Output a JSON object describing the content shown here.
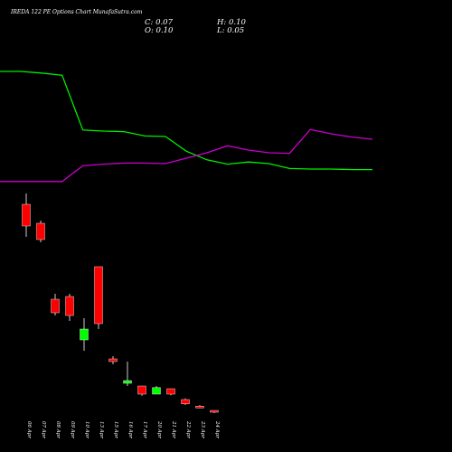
{
  "header": {
    "title": "IREDA 122 PE Options Chart MunafaSutra.com",
    "close": "C: 0.07",
    "open": "O: 0.10",
    "high": "H: 0.10",
    "low": "L: 0.05"
  },
  "chart_data": {
    "type": "candlestick",
    "title": "IREDA 122 PE Options Chart MunafaSutra.com",
    "xlabel": "",
    "ylabel": "",
    "ylim": [
      0,
      7
    ],
    "grid": false,
    "categories": [
      "06 Apr",
      "07 Apr",
      "08 Apr",
      "09 Apr",
      "10 Apr",
      "13 Apr",
      "15 Apr",
      "16 Apr",
      "17 Apr",
      "20 Apr",
      "21 Apr",
      "22 Apr",
      "23 Apr",
      "24 Apr"
    ],
    "colors": {
      "up": "#00ff00",
      "down": "#ff0000",
      "background": "#000000",
      "line_a": "#00ee00",
      "line_b": "#cc00cc"
    },
    "candles": [
      {
        "date": "06 Apr",
        "open": 3.9,
        "high": 4.1,
        "low": 3.3,
        "close": 3.5
      },
      {
        "date": "07 Apr",
        "open": 3.55,
        "high": 3.6,
        "low": 3.2,
        "close": 3.25
      },
      {
        "date": "08 Apr",
        "open": 2.15,
        "high": 2.25,
        "low": 1.85,
        "close": 1.9
      },
      {
        "date": "09 Apr",
        "open": 2.2,
        "high": 2.25,
        "low": 1.75,
        "close": 1.85
      },
      {
        "date": "10 Apr",
        "open": 1.4,
        "high": 1.8,
        "low": 1.2,
        "close": 1.6
      },
      {
        "date": "13 Apr",
        "open": 2.75,
        "high": 2.75,
        "low": 1.6,
        "close": 1.7
      },
      {
        "date": "15 Apr",
        "open": 1.05,
        "high": 1.1,
        "low": 0.95,
        "close": 1.0
      },
      {
        "date": "16 Apr",
        "open": 0.6,
        "high": 1.0,
        "low": 0.55,
        "close": 0.65
      },
      {
        "date": "17 Apr",
        "open": 0.55,
        "high": 0.55,
        "low": 0.37,
        "close": 0.4
      },
      {
        "date": "20 Apr",
        "open": 0.4,
        "high": 0.55,
        "low": 0.4,
        "close": 0.52
      },
      {
        "date": "21 Apr",
        "open": 0.5,
        "high": 0.5,
        "low": 0.38,
        "close": 0.4
      },
      {
        "date": "22 Apr",
        "open": 0.3,
        "high": 0.32,
        "low": 0.2,
        "close": 0.22
      },
      {
        "date": "23 Apr",
        "open": 0.18,
        "high": 0.2,
        "low": 0.15,
        "close": 0.16
      },
      {
        "date": "24 Apr",
        "open": 0.1,
        "high": 0.1,
        "low": 0.05,
        "close": 0.07
      }
    ],
    "series": [
      {
        "color": "#00ee00",
        "points": [
          [
            0,
            6.35
          ],
          [
            1,
            6.35
          ],
          [
            2,
            6.32
          ],
          [
            3,
            6.28
          ],
          [
            4,
            5.27
          ],
          [
            5,
            5.25
          ],
          [
            6,
            5.24
          ],
          [
            7,
            5.16
          ],
          [
            8,
            5.15
          ],
          [
            9,
            4.88
          ],
          [
            10,
            4.72
          ],
          [
            11,
            4.64
          ],
          [
            12,
            4.68
          ],
          [
            13,
            4.65
          ],
          [
            14,
            4.56
          ],
          [
            15,
            4.55
          ],
          [
            16,
            4.55
          ],
          [
            17,
            4.54
          ],
          [
            18,
            4.54
          ]
        ]
      },
      {
        "color": "#cc00cc",
        "points": [
          [
            0,
            4.32
          ],
          [
            1,
            4.32
          ],
          [
            2,
            4.32
          ],
          [
            3,
            4.32
          ],
          [
            4,
            4.61
          ],
          [
            5,
            4.64
          ],
          [
            6,
            4.66
          ],
          [
            7,
            4.66
          ],
          [
            8,
            4.65
          ],
          [
            9,
            4.75
          ],
          [
            10,
            4.85
          ],
          [
            11,
            4.98
          ],
          [
            12,
            4.9
          ],
          [
            13,
            4.85
          ],
          [
            14,
            4.84
          ],
          [
            15,
            5.28
          ],
          [
            16,
            5.2
          ],
          [
            17,
            5.14
          ],
          [
            18,
            5.1
          ]
        ]
      }
    ]
  }
}
